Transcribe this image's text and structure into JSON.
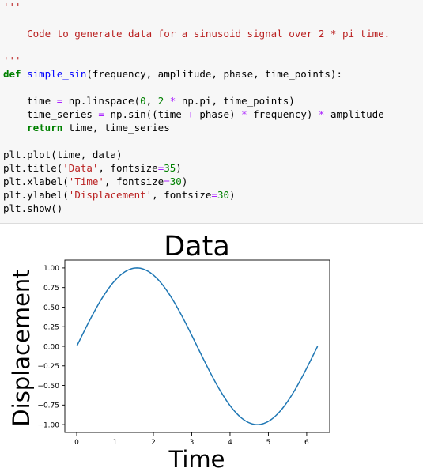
{
  "code_cell": {
    "lines": [
      [
        {
          "t": "'''",
          "c": "str"
        }
      ],
      [],
      [
        {
          "t": "    Code to generate data for a sinusoid signal over 2 * pi time.",
          "c": "str"
        }
      ],
      [],
      [
        {
          "t": "'''",
          "c": "str"
        }
      ],
      [
        {
          "t": "def",
          "c": "kw"
        },
        {
          "t": " ",
          "c": "plain"
        },
        {
          "t": "simple_sin",
          "c": "fn"
        },
        {
          "t": "(frequency, amplitude, phase, time_points):",
          "c": "plain"
        }
      ],
      [],
      [
        {
          "t": "    time ",
          "c": "plain"
        },
        {
          "t": "=",
          "c": "op"
        },
        {
          "t": " np.linspace(",
          "c": "plain"
        },
        {
          "t": "0",
          "c": "num"
        },
        {
          "t": ", ",
          "c": "plain"
        },
        {
          "t": "2",
          "c": "num"
        },
        {
          "t": " ",
          "c": "plain"
        },
        {
          "t": "*",
          "c": "op"
        },
        {
          "t": " np.pi, time_points)",
          "c": "plain"
        }
      ],
      [
        {
          "t": "    time_series ",
          "c": "plain"
        },
        {
          "t": "=",
          "c": "op"
        },
        {
          "t": " np.sin((time ",
          "c": "plain"
        },
        {
          "t": "+",
          "c": "op"
        },
        {
          "t": " phase) ",
          "c": "plain"
        },
        {
          "t": "*",
          "c": "op"
        },
        {
          "t": " frequency) ",
          "c": "plain"
        },
        {
          "t": "*",
          "c": "op"
        },
        {
          "t": " amplitude",
          "c": "plain"
        }
      ],
      [
        {
          "t": "    ",
          "c": "plain"
        },
        {
          "t": "return",
          "c": "kw"
        },
        {
          "t": " time, time_series",
          "c": "plain"
        }
      ],
      [],
      [
        {
          "t": "plt.plot(time, data)",
          "c": "plain"
        }
      ],
      [
        {
          "t": "plt.title(",
          "c": "plain"
        },
        {
          "t": "'Data'",
          "c": "str"
        },
        {
          "t": ", fontsize",
          "c": "plain"
        },
        {
          "t": "=",
          "c": "op"
        },
        {
          "t": "35",
          "c": "num"
        },
        {
          "t": ")",
          "c": "plain"
        }
      ],
      [
        {
          "t": "plt.xlabel(",
          "c": "plain"
        },
        {
          "t": "'Time'",
          "c": "str"
        },
        {
          "t": ", fontsize",
          "c": "plain"
        },
        {
          "t": "=",
          "c": "op"
        },
        {
          "t": "30",
          "c": "num"
        },
        {
          "t": ")",
          "c": "plain"
        }
      ],
      [
        {
          "t": "plt.ylabel(",
          "c": "plain"
        },
        {
          "t": "'Displacement'",
          "c": "str"
        },
        {
          "t": ", fontsize",
          "c": "plain"
        },
        {
          "t": "=",
          "c": "op"
        },
        {
          "t": "30",
          "c": "num"
        },
        {
          "t": ")",
          "c": "plain"
        }
      ],
      [
        {
          "t": "plt.show()",
          "c": "plain"
        }
      ]
    ]
  },
  "chart_data": {
    "type": "line",
    "title": "Data",
    "xlabel": "Time",
    "ylabel": "Displacement",
    "xlim": [
      -0.31,
      6.6
    ],
    "ylim": [
      -1.1,
      1.1
    ],
    "xticks": [
      0,
      1,
      2,
      3,
      4,
      5,
      6
    ],
    "xtick_labels": [
      "0",
      "1",
      "2",
      "3",
      "4",
      "5",
      "6"
    ],
    "yticks": [
      1.0,
      0.75,
      0.5,
      0.25,
      0.0,
      -0.25,
      -0.5,
      -0.75,
      -1.0
    ],
    "ytick_labels": [
      "1.00",
      "0.75",
      "0.50",
      "0.25",
      "0.00",
      "−0.25",
      "−0.50",
      "−0.75",
      "−1.00"
    ],
    "grid": false,
    "line_color": "#1f77b4",
    "series": [
      {
        "x": [
          0,
          0.2618,
          0.5236,
          0.7854,
          1.0472,
          1.309,
          1.5708,
          1.8326,
          2.0944,
          2.3562,
          2.618,
          2.8798,
          3.1416,
          3.4034,
          3.6652,
          3.927,
          4.1888,
          4.4506,
          4.7124,
          4.9742,
          5.236,
          5.4978,
          5.7596,
          6.0214,
          6.2832
        ],
        "y": [
          0,
          0.259,
          0.5,
          0.707,
          0.866,
          0.966,
          1.0,
          0.966,
          0.866,
          0.707,
          0.5,
          0.259,
          0,
          -0.259,
          -0.5,
          -0.707,
          -0.866,
          -0.966,
          -1.0,
          -0.966,
          -0.866,
          -0.707,
          -0.5,
          -0.259,
          0
        ]
      }
    ]
  }
}
